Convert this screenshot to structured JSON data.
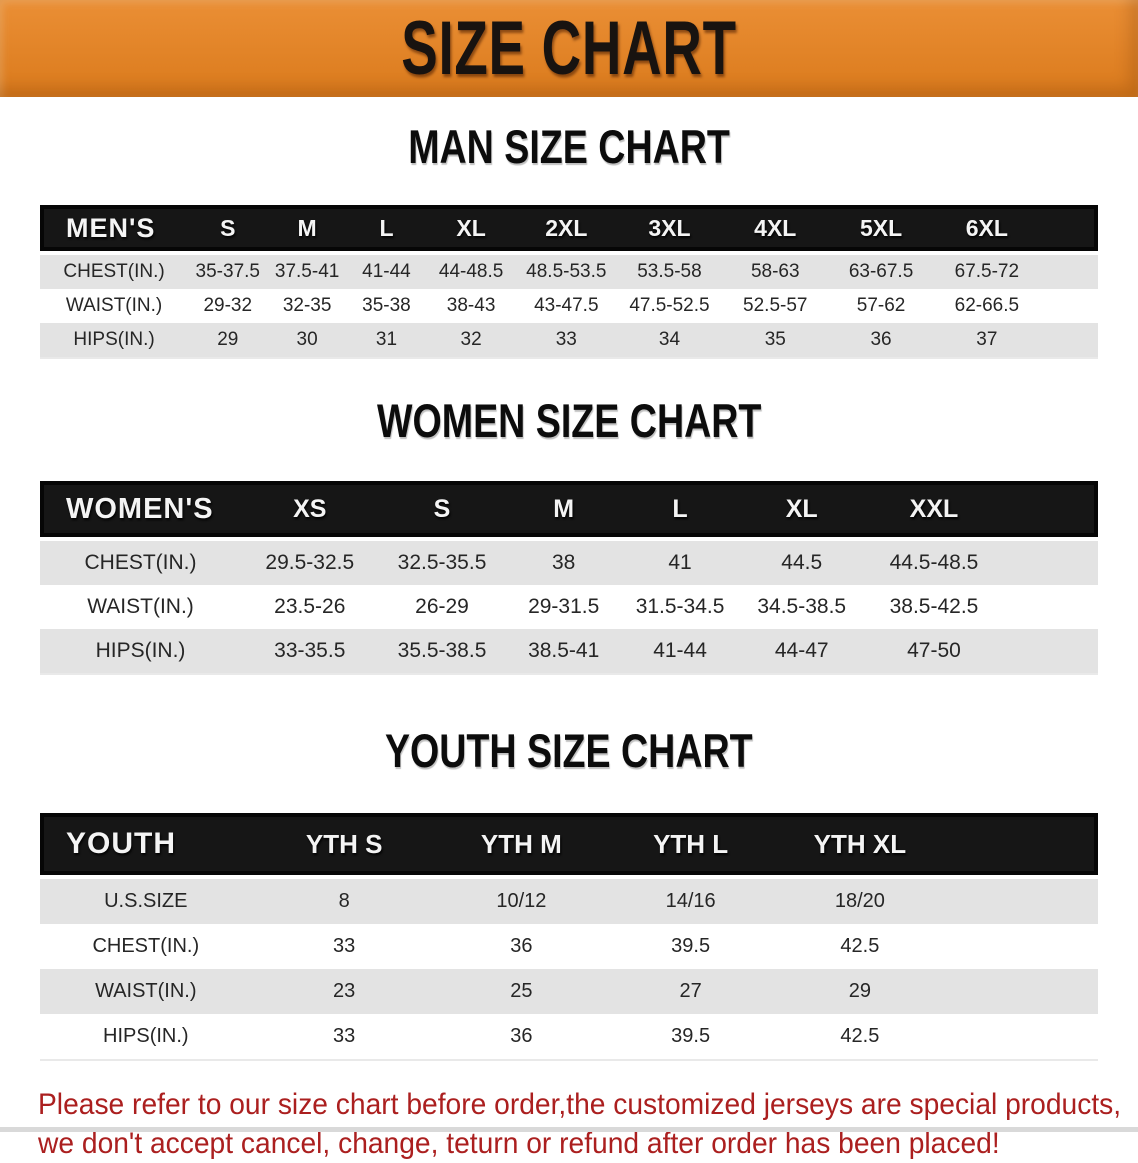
{
  "banner": {
    "title": "SIZE CHART"
  },
  "colors": {
    "banner_bg": "#E8821E",
    "header_band": "#161616",
    "row_stripe": "#E3E3E3",
    "disclaimer_red": "#AB1F1F"
  },
  "sections": [
    {
      "heading": "MAN SIZE CHART",
      "label": "MEN'S",
      "columns": [
        "S",
        "M",
        "L",
        "XL",
        "2XL",
        "3XL",
        "4XL",
        "5XL",
        "6XL"
      ],
      "rows": [
        {
          "label": "CHEST(IN.)",
          "values": [
            "35-37.5",
            "37.5-41",
            "41-44",
            "44-48.5",
            "48.5-53.5",
            "53.5-58",
            "58-63",
            "63-67.5",
            "67.5-72"
          ]
        },
        {
          "label": "WAIST(IN.)",
          "values": [
            "29-32",
            "32-35",
            "35-38",
            "38-43",
            "43-47.5",
            "47.5-52.5",
            "52.5-57",
            "57-62",
            "62-66.5"
          ]
        },
        {
          "label": "HIPS(IN.)",
          "values": [
            "29",
            "30",
            "31",
            "32",
            "33",
            "34",
            "35",
            "36",
            "37"
          ]
        }
      ]
    },
    {
      "heading": "WOMEN SIZE CHART",
      "label": "WOMEN'S",
      "columns": [
        "XS",
        "S",
        "M",
        "L",
        "XL",
        "XXL"
      ],
      "rows": [
        {
          "label": "CHEST(IN.)",
          "values": [
            "29.5-32.5",
            "32.5-35.5",
            "38",
            "41",
            "44.5",
            "44.5-48.5"
          ]
        },
        {
          "label": "WAIST(IN.)",
          "values": [
            "23.5-26",
            "26-29",
            "29-31.5",
            "31.5-34.5",
            "34.5-38.5",
            "38.5-42.5"
          ]
        },
        {
          "label": "HIPS(IN.)",
          "values": [
            "33-35.5",
            "35.5-38.5",
            "38.5-41",
            "41-44",
            "44-47",
            "47-50"
          ]
        }
      ]
    },
    {
      "heading": "YOUTH SIZE CHART",
      "label": "YOUTH",
      "columns": [
        "YTH S",
        "YTH M",
        "YTH L",
        "YTH XL"
      ],
      "rows": [
        {
          "label": "U.S.SIZE",
          "values": [
            "8",
            "10/12",
            "14/16",
            "18/20"
          ]
        },
        {
          "label": "CHEST(IN.)",
          "values": [
            "33",
            "36",
            "39.5",
            "42.5"
          ]
        },
        {
          "label": "WAIST(IN.)",
          "values": [
            "23",
            "25",
            "27",
            "29"
          ]
        },
        {
          "label": "HIPS(IN.)",
          "values": [
            "33",
            "36",
            "39.5",
            "42.5"
          ]
        }
      ]
    }
  ],
  "disclaimer": {
    "line1": "Please refer to our size chart before order,the customized jerseys are special products,",
    "line2": "we don't accept cancel, change, teturn or refund after order has been placed!"
  }
}
